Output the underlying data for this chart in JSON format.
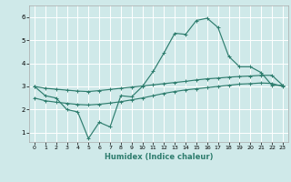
{
  "xlabel": "Humidex (Indice chaleur)",
  "x_ticks": [
    0,
    1,
    2,
    3,
    4,
    5,
    6,
    7,
    8,
    9,
    10,
    11,
    12,
    13,
    14,
    15,
    16,
    17,
    18,
    19,
    20,
    21,
    22,
    23
  ],
  "y_ticks": [
    1,
    2,
    3,
    4,
    5,
    6
  ],
  "xlim": [
    -0.5,
    23.5
  ],
  "ylim": [
    0.6,
    6.5
  ],
  "background_color": "#cfe9e9",
  "grid_color": "#ffffff",
  "line_color": "#2e7d6e",
  "line1_y": [
    3.0,
    2.6,
    2.5,
    2.0,
    1.9,
    0.75,
    1.45,
    1.25,
    2.6,
    2.55,
    3.0,
    3.65,
    4.45,
    5.3,
    5.25,
    5.85,
    5.95,
    5.55,
    4.3,
    3.85,
    3.85,
    3.6,
    3.05,
    3.05
  ],
  "line2_y": [
    3.0,
    2.92,
    2.88,
    2.84,
    2.8,
    2.78,
    2.82,
    2.87,
    2.92,
    2.97,
    3.02,
    3.07,
    3.12,
    3.17,
    3.22,
    3.28,
    3.33,
    3.36,
    3.4,
    3.43,
    3.45,
    3.48,
    3.48,
    3.05
  ],
  "line3_y": [
    2.5,
    2.38,
    2.32,
    2.27,
    2.22,
    2.2,
    2.23,
    2.28,
    2.34,
    2.42,
    2.5,
    2.6,
    2.7,
    2.78,
    2.85,
    2.9,
    2.95,
    3.0,
    3.05,
    3.1,
    3.12,
    3.15,
    3.13,
    3.0
  ]
}
